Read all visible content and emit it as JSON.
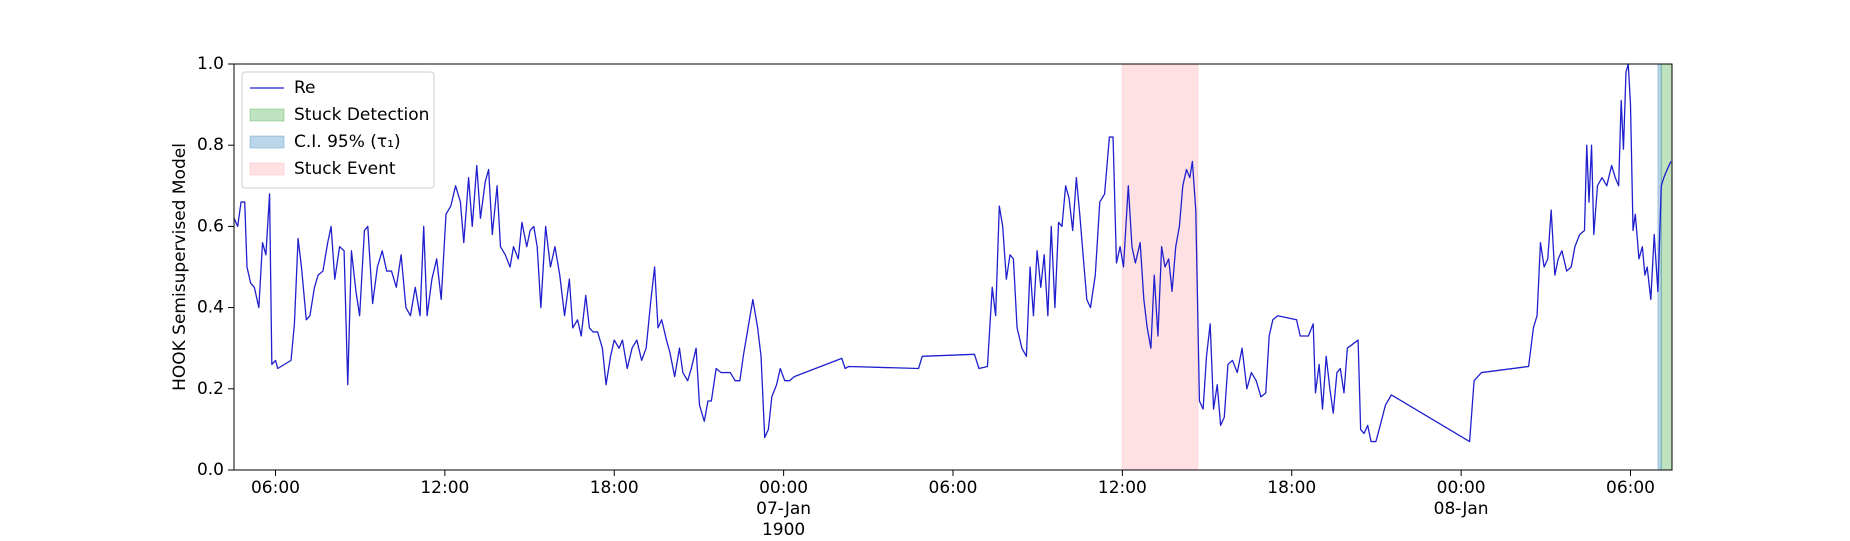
{
  "chart_data": {
    "type": "line",
    "ylabel": "HOOK Semisupervised Model",
    "xlim": [
      4.53,
      55.47
    ],
    "ylim": [
      0,
      1
    ],
    "xticks": [
      {
        "value": 6,
        "label": "06:00"
      },
      {
        "value": 12,
        "label": "12:00"
      },
      {
        "value": 18,
        "label": "18:00"
      },
      {
        "value": 24,
        "label": "00:00\n07-Jan\n1900"
      },
      {
        "value": 30,
        "label": "06:00"
      },
      {
        "value": 36,
        "label": "12:00"
      },
      {
        "value": 42,
        "label": "18:00"
      },
      {
        "value": 48,
        "label": "00:00\n08-Jan"
      },
      {
        "value": 54,
        "label": "06:00"
      }
    ],
    "yticks": [
      {
        "value": 0,
        "label": "0.0"
      },
      {
        "value": 0.2,
        "label": "0.2"
      },
      {
        "value": 0.4,
        "label": "0.4"
      },
      {
        "value": 0.6,
        "label": "0.6"
      },
      {
        "value": 0.8,
        "label": "0.8"
      },
      {
        "value": 1,
        "label": "1.0"
      }
    ],
    "legend": "upper left",
    "x": [
      4.53,
      4.66,
      4.78,
      4.91,
      4.99,
      5.12,
      5.25,
      5.41,
      5.54,
      5.66,
      5.79,
      5.87,
      6.0,
      6.08,
      6.55,
      6.67,
      6.8,
      6.92,
      7.09,
      7.22,
      7.38,
      7.51,
      7.68,
      7.85,
      7.97,
      8.1,
      8.27,
      8.43,
      8.56,
      8.69,
      8.85,
      8.98,
      9.15,
      9.27,
      9.44,
      9.61,
      9.78,
      9.94,
      10.11,
      10.28,
      10.45,
      10.62,
      10.78,
      10.95,
      11.12,
      11.25,
      11.37,
      11.54,
      11.71,
      11.87,
      12.04,
      12.21,
      12.38,
      12.55,
      12.67,
      12.84,
      12.97,
      13.13,
      13.26,
      13.43,
      13.55,
      13.68,
      13.85,
      13.97,
      14.14,
      14.31,
      14.43,
      14.6,
      14.73,
      14.9,
      15.02,
      15.15,
      15.27,
      15.4,
      15.57,
      15.74,
      15.9,
      16.07,
      16.24,
      16.41,
      16.53,
      16.7,
      16.83,
      16.99,
      17.12,
      17.25,
      17.41,
      17.58,
      17.71,
      17.87,
      18.0,
      18.17,
      18.29,
      18.46,
      18.63,
      18.8,
      18.97,
      19.13,
      19.3,
      19.43,
      19.55,
      19.68,
      19.85,
      19.97,
      20.14,
      20.31,
      20.43,
      20.6,
      20.73,
      20.9,
      21.02,
      21.19,
      21.32,
      21.44,
      21.61,
      21.78,
      21.95,
      22.11,
      22.28,
      22.45,
      22.57,
      22.74,
      22.91,
      23.08,
      23.2,
      23.33,
      23.46,
      23.58,
      23.75,
      23.88,
      24.04,
      24.21,
      24.38,
      26.06,
      26.18,
      26.31,
      28.78,
      28.91,
      30.76,
      30.92,
      31.22,
      31.39,
      31.51,
      31.64,
      31.76,
      31.89,
      32.02,
      32.14,
      32.27,
      32.44,
      32.6,
      32.73,
      32.85,
      32.98,
      33.11,
      33.23,
      33.36,
      33.48,
      33.61,
      33.74,
      33.86,
      33.99,
      34.11,
      34.24,
      34.37,
      34.49,
      34.62,
      34.74,
      34.87,
      35.04,
      35.2,
      35.37,
      35.54,
      35.67,
      35.79,
      35.92,
      36.04,
      36.21,
      36.34,
      36.46,
      36.63,
      36.76,
      36.88,
      37.01,
      37.13,
      37.26,
      37.39,
      37.51,
      37.64,
      37.76,
      37.89,
      38.02,
      38.14,
      38.27,
      38.39,
      38.48,
      38.6,
      38.73,
      38.86,
      38.98,
      39.11,
      39.23,
      39.36,
      39.48,
      39.61,
      39.74,
      39.9,
      40.07,
      40.24,
      40.41,
      40.57,
      40.74,
      40.91,
      41.08,
      41.2,
      41.33,
      41.5,
      42.17,
      42.3,
      42.59,
      42.76,
      42.84,
      42.97,
      43.09,
      43.22,
      43.35,
      43.47,
      43.6,
      43.72,
      43.85,
      43.97,
      44.35,
      44.44,
      44.56,
      44.69,
      44.81,
      44.98,
      45.06,
      45.32,
      45.53,
      48.3,
      48.46,
      48.72,
      50.39,
      50.56,
      50.69,
      50.81,
      50.94,
      51.07,
      51.19,
      51.32,
      51.44,
      51.57,
      51.74,
      51.9,
      52.03,
      52.2,
      52.37,
      52.45,
      52.53,
      52.62,
      52.7,
      52.83,
      52.99,
      53.16,
      53.33,
      53.46,
      53.58,
      53.67,
      53.75,
      53.84,
      53.92,
      54.0,
      54.09,
      54.17,
      54.3,
      54.42,
      54.51,
      54.59,
      54.72,
      54.84,
      54.97,
      55.09,
      55.18,
      55.3,
      55.43
    ],
    "series": [
      {
        "name": "Re",
        "color": "#1f1fcf",
        "values": [
          0.62,
          0.6,
          0.66,
          0.66,
          0.5,
          0.46,
          0.45,
          0.4,
          0.56,
          0.53,
          0.68,
          0.26,
          0.27,
          0.25,
          0.27,
          0.36,
          0.57,
          0.5,
          0.37,
          0.38,
          0.45,
          0.48,
          0.49,
          0.56,
          0.6,
          0.47,
          0.55,
          0.54,
          0.21,
          0.54,
          0.44,
          0.38,
          0.59,
          0.6,
          0.41,
          0.5,
          0.54,
          0.49,
          0.49,
          0.45,
          0.53,
          0.4,
          0.38,
          0.45,
          0.38,
          0.6,
          0.38,
          0.47,
          0.52,
          0.42,
          0.63,
          0.65,
          0.7,
          0.66,
          0.56,
          0.72,
          0.6,
          0.75,
          0.62,
          0.71,
          0.74,
          0.58,
          0.7,
          0.55,
          0.53,
          0.5,
          0.55,
          0.52,
          0.61,
          0.55,
          0.59,
          0.6,
          0.55,
          0.4,
          0.6,
          0.5,
          0.55,
          0.48,
          0.38,
          0.47,
          0.35,
          0.37,
          0.33,
          0.43,
          0.35,
          0.34,
          0.34,
          0.3,
          0.21,
          0.28,
          0.32,
          0.3,
          0.32,
          0.25,
          0.3,
          0.32,
          0.27,
          0.3,
          0.42,
          0.5,
          0.35,
          0.37,
          0.32,
          0.29,
          0.23,
          0.3,
          0.24,
          0.22,
          0.25,
          0.3,
          0.16,
          0.12,
          0.17,
          0.17,
          0.25,
          0.24,
          0.24,
          0.24,
          0.22,
          0.22,
          0.28,
          0.35,
          0.42,
          0.35,
          0.28,
          0.08,
          0.1,
          0.18,
          0.21,
          0.25,
          0.22,
          0.22,
          0.23,
          0.275,
          0.25,
          0.255,
          0.25,
          0.28,
          0.285,
          0.25,
          0.255,
          0.45,
          0.38,
          0.65,
          0.6,
          0.47,
          0.53,
          0.52,
          0.35,
          0.3,
          0.28,
          0.5,
          0.38,
          0.54,
          0.45,
          0.53,
          0.38,
          0.6,
          0.4,
          0.61,
          0.6,
          0.7,
          0.67,
          0.59,
          0.72,
          0.63,
          0.52,
          0.42,
          0.4,
          0.48,
          0.66,
          0.68,
          0.82,
          0.82,
          0.51,
          0.55,
          0.5,
          0.7,
          0.55,
          0.51,
          0.56,
          0.42,
          0.35,
          0.3,
          0.48,
          0.33,
          0.55,
          0.5,
          0.52,
          0.44,
          0.55,
          0.6,
          0.7,
          0.74,
          0.72,
          0.76,
          0.64,
          0.17,
          0.15,
          0.28,
          0.36,
          0.15,
          0.21,
          0.11,
          0.13,
          0.26,
          0.27,
          0.24,
          0.3,
          0.2,
          0.24,
          0.22,
          0.18,
          0.19,
          0.33,
          0.37,
          0.38,
          0.37,
          0.33,
          0.33,
          0.36,
          0.19,
          0.26,
          0.15,
          0.28,
          0.2,
          0.14,
          0.24,
          0.25,
          0.19,
          0.3,
          0.32,
          0.1,
          0.09,
          0.11,
          0.07,
          0.07,
          0.09,
          0.16,
          0.185,
          0.07,
          0.22,
          0.24,
          0.255,
          0.35,
          0.38,
          0.56,
          0.5,
          0.52,
          0.64,
          0.48,
          0.52,
          0.54,
          0.49,
          0.5,
          0.55,
          0.58,
          0.59,
          0.8,
          0.66,
          0.8,
          0.58,
          0.7,
          0.72,
          0.7,
          0.75,
          0.72,
          0.7,
          0.91,
          0.79,
          0.98,
          1.0,
          0.9,
          0.59,
          0.63,
          0.52,
          0.55,
          0.48,
          0.5,
          0.42,
          0.58,
          0.44,
          0.7,
          0.72,
          0.74,
          0.76
        ]
      }
    ],
    "spans": [
      {
        "name": "Stuck Detection",
        "color": "#2ca02c",
        "x": [
          55.09,
          55.47
        ]
      },
      {
        "name": "C.I. 95% (τ₁)",
        "color": "#1f77b4",
        "x": [
          54.97,
          55.09
        ]
      },
      {
        "name": "Stuck Event",
        "color": "#ff9aa6",
        "x": [
          36.0,
          38.67
        ]
      }
    ]
  }
}
